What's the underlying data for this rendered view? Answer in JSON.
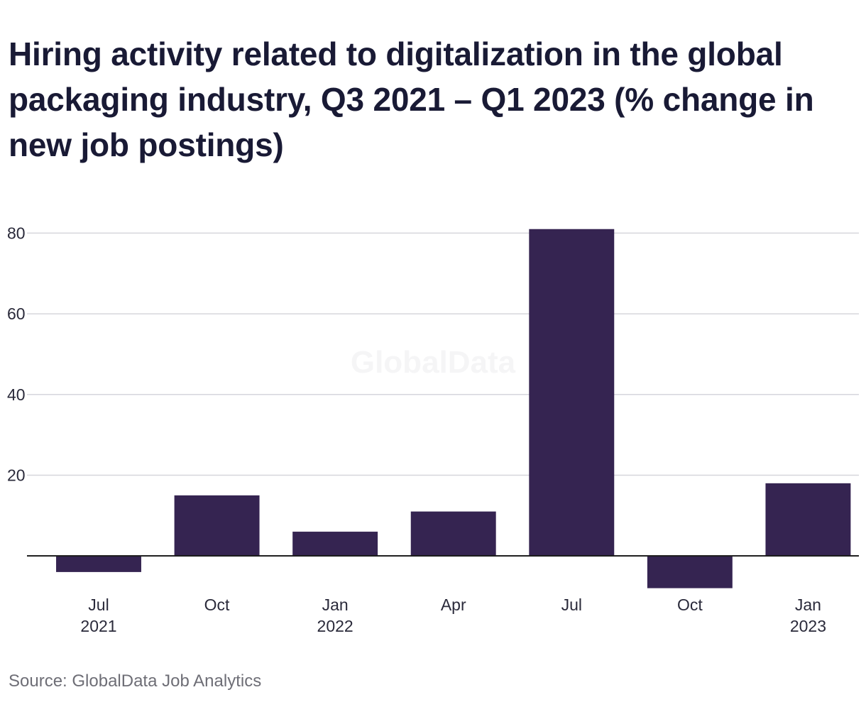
{
  "chart_data": {
    "type": "bar",
    "title": "Hiring activity related to digitalization in the global packaging industry, Q3 2021 – Q1 2023 (% change in new job postings)",
    "xlabel": "",
    "ylabel": "",
    "categories": [
      "Jul\n2021",
      "Oct",
      "Jan\n2022",
      "Apr",
      "Jul",
      "Oct",
      "Jan\n2023"
    ],
    "values": [
      -4,
      15,
      6,
      11,
      81,
      -8,
      18
    ],
    "ylim": [
      -10,
      85
    ],
    "yticks": [
      "20",
      "40",
      "60",
      "80"
    ],
    "grid": true,
    "legend": "none",
    "colors": {
      "bar": "#352451",
      "grid": "#d6d6dc",
      "axis": "#1a1a1a"
    }
  },
  "watermark": "GlobalData",
  "source": "Source: GlobalData Job Analytics"
}
